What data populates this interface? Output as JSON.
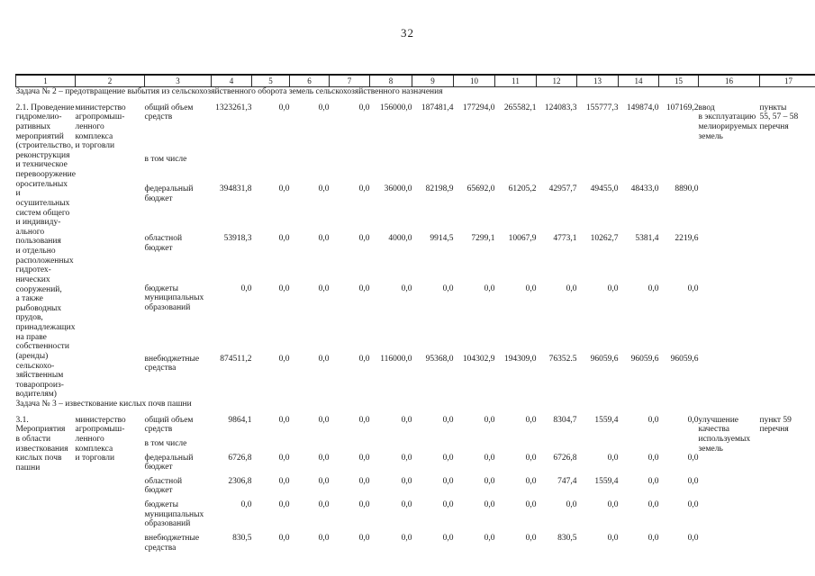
{
  "page": {
    "number": "32"
  },
  "table": {
    "column_numbers": [
      "1",
      "2",
      "3",
      "4",
      "5",
      "6",
      "7",
      "8",
      "9",
      "10",
      "11",
      "12",
      "13",
      "14",
      "15",
      "16",
      "17"
    ],
    "sections": [
      {
        "title": "Задача № 2 – предотвращение выбытия из сельскохозяйственного оборота земель сельскохозяйственного назначения",
        "items": [
          {
            "activity": "2.1. Проведение\nгидромелио-\nративных\nмероприятий\n(строительство,\nреконструкция\nи техническое\nперевооружение\nоросительных\nи осушительных\nсистем общего\nи индивиду-\nального\nпользования\nи отдельно\nрасположенных\nгидротех-\nнических\nсооружений,\nа также\nрыбоводных\nпрудов,\nпринадлежащих\nна праве\nсобственности\n(аренды)\nсельскохо-\nзяйственным\nтоваропроиз-\nводителям)",
            "ministry": "министерство\nагропромыш-\nленного\nкомплекса\nи торговли",
            "rows": [
              {
                "label": "общий объем\nсредств",
                "values": [
                  "1323261,3",
                  "0,0",
                  "0,0",
                  "0,0",
                  "156000,0",
                  "187481,4",
                  "177294,0",
                  "265582,1",
                  "124083,3",
                  "155777,3",
                  "149874,0",
                  "107169,2"
                ]
              },
              {
                "label": "в том числе",
                "values": []
              },
              {
                "label": "федеральный\nбюджет",
                "values": [
                  "394831,8",
                  "0,0",
                  "0,0",
                  "0,0",
                  "36000,0",
                  "82198,9",
                  "65692,0",
                  "61205,2",
                  "42957,7",
                  "49455,0",
                  "48433,0",
                  "8890,0"
                ]
              },
              {
                "label": "областной\nбюджет",
                "values": [
                  "53918,3",
                  "0,0",
                  "0,0",
                  "0,0",
                  "4000,0",
                  "9914,5",
                  "7299,1",
                  "10067,9",
                  "4773,1",
                  "10262,7",
                  "5381,4",
                  "2219,6"
                ]
              },
              {
                "label": "бюджеты\nмуниципальных\nобразований",
                "values": [
                  "0,0",
                  "0,0",
                  "0,0",
                  "0,0",
                  "0,0",
                  "0,0",
                  "0,0",
                  "0,0",
                  "0,0",
                  "0,0",
                  "0,0",
                  "0,0"
                ]
              },
              {
                "label": "внебюджетные\nсредства",
                "values": [
                  "874511,2",
                  "0,0",
                  "0,0",
                  "0,0",
                  "116000,0",
                  "95368,0",
                  "104302,9",
                  "194309,0",
                  "76352.5",
                  "96059,6",
                  "96059,6",
                  "96059,6"
                ]
              }
            ],
            "result": "ввод\nв эксплуатацию\nмелиорируемых\nземель",
            "reference": "пункты\n55, 57 – 58\nперечня"
          }
        ]
      },
      {
        "title": "Задача № 3 – известкование кислых почв пашни",
        "items": [
          {
            "activity": "3.1. Мероприятия\nв области\nизвесткования\nкислых почв\nпашни",
            "ministry": "министерство\nагропромыш-\nленного\nкомплекса\nи торговли",
            "rows": [
              {
                "label": "общий объем\nсредств",
                "values": [
                  "9864,1",
                  "0,0",
                  "0,0",
                  "0,0",
                  "0,0",
                  "0,0",
                  "0,0",
                  "0,0",
                  "8304,7",
                  "1559,4",
                  "0,0",
                  "0,0"
                ]
              },
              {
                "label": "в том числе",
                "values": []
              },
              {
                "label": "федеральный\nбюджет",
                "values": [
                  "6726,8",
                  "0,0",
                  "0,0",
                  "0,0",
                  "0,0",
                  "0,0",
                  "0,0",
                  "0,0",
                  "6726,8",
                  "0,0",
                  "0,0",
                  "0,0"
                ]
              },
              {
                "label": "областной\nбюджет",
                "values": [
                  "2306,8",
                  "0,0",
                  "0,0",
                  "0,0",
                  "0,0",
                  "0,0",
                  "0,0",
                  "0,0",
                  "747,4",
                  "1559,4",
                  "0,0",
                  "0,0"
                ]
              },
              {
                "label": "бюджеты\nмуниципальных\nобразований",
                "values": [
                  "0,0",
                  "0,0",
                  "0,0",
                  "0,0",
                  "0,0",
                  "0,0",
                  "0,0",
                  "0,0",
                  "0,0",
                  "0,0",
                  "0,0",
                  "0,0"
                ]
              },
              {
                "label": "внебюджетные\nсредства",
                "values": [
                  "830,5",
                  "0,0",
                  "0,0",
                  "0,0",
                  "0,0",
                  "0,0",
                  "0,0",
                  "0,0",
                  "830,5",
                  "0,0",
                  "0,0",
                  "0,0"
                ]
              }
            ],
            "result": "улучшение\nкачества\nиспользуемых\nземель",
            "reference": "пункт 59\nперечня"
          }
        ]
      }
    ]
  }
}
